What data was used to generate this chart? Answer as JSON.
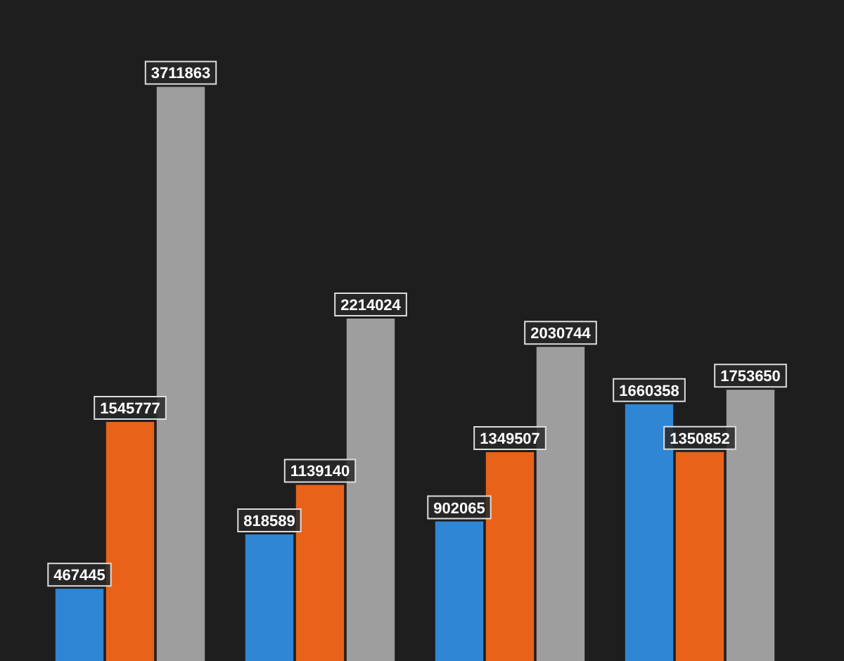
{
  "chart_data": {
    "type": "bar",
    "categories": [
      null,
      null,
      null,
      null
    ],
    "data_labels": true,
    "legend": false,
    "series": [
      {
        "color": "#2e86d4",
        "values": [
          467445,
          818589,
          902065,
          1660358
        ]
      },
      {
        "color": "#e8621a",
        "values": [
          1545777,
          1139140,
          1349507,
          1350852
        ]
      },
      {
        "color": "#9e9e9e",
        "values": [
          3711863,
          2214024,
          2030744,
          1753650
        ]
      }
    ]
  }
}
